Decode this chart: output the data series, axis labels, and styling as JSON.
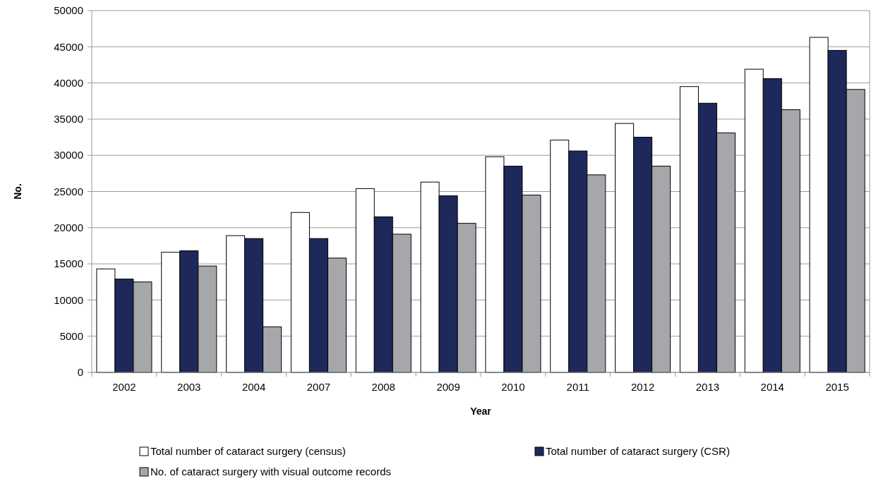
{
  "chart_data": {
    "type": "bar",
    "xlabel": "Year",
    "ylabel": "No.",
    "categories": [
      "2002",
      "2003",
      "2004",
      "2007",
      "2008",
      "2009",
      "2010",
      "2011",
      "2012",
      "2013",
      "2014",
      "2015"
    ],
    "series": [
      {
        "name": "Total number of cataract surgery (census)",
        "color": "#ffffff",
        "values": [
          14300,
          16600,
          18900,
          22100,
          25400,
          26300,
          29800,
          32100,
          34400,
          39500,
          41900,
          46300
        ]
      },
      {
        "name": "Total number of cataract surgery (CSR)",
        "color": "#1e285a",
        "values": [
          12900,
          16800,
          18500,
          18500,
          21500,
          24400,
          28500,
          30600,
          32500,
          37200,
          40600,
          44500
        ]
      },
      {
        "name": "No. of cataract surgery with visual outcome records",
        "color": "#a6a7ab",
        "values": [
          12500,
          14700,
          6300,
          15800,
          19100,
          20600,
          24500,
          27300,
          28500,
          33100,
          36300,
          39100
        ]
      }
    ],
    "ylim": [
      0,
      50000
    ],
    "yticks": [
      0,
      5000,
      10000,
      15000,
      20000,
      25000,
      30000,
      35000,
      40000,
      45000,
      50000
    ],
    "grid": "y",
    "legend": "bottom"
  }
}
